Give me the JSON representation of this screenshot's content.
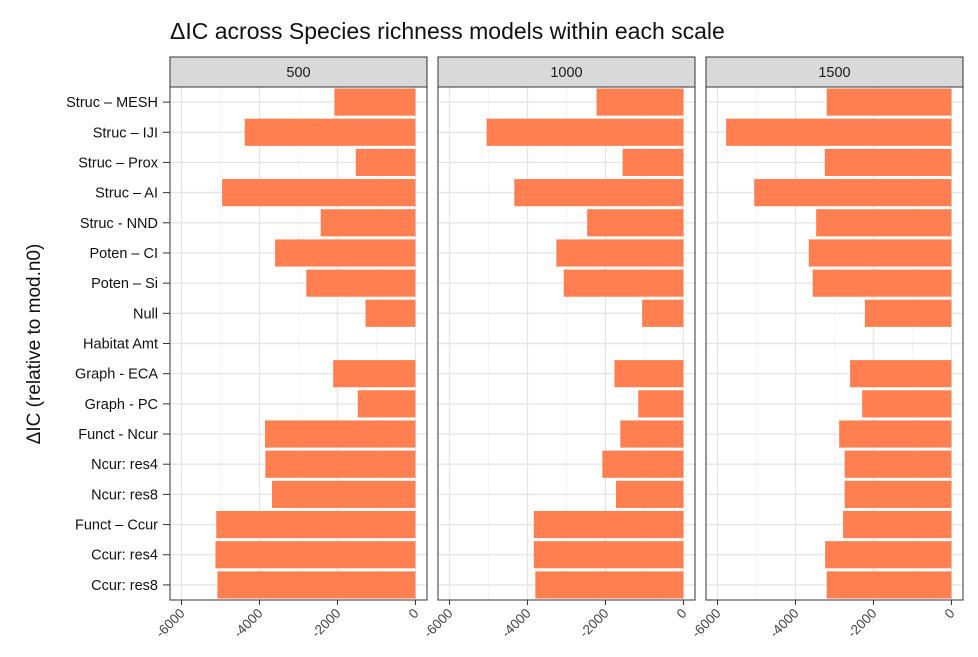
{
  "chart_data": {
    "type": "bar",
    "orientation": "horizontal",
    "title": "ΔIC across Species richness models within each scale",
    "ylabel": "ΔIC (relative to mod.n0)",
    "xlabel": "",
    "xlim": [
      -6000,
      0
    ],
    "x_ticks": [
      -6000,
      -4000,
      -2000,
      0
    ],
    "x_tick_labels": [
      "-6000",
      "-4000",
      "-2000",
      "0"
    ],
    "grid": true,
    "bar_color": "#ff7f50",
    "categories": [
      "Struc – MESH",
      "Struc – IJI",
      "Struc – Prox",
      "Struc – AI",
      "Struc - NND",
      "Poten – CI",
      "Poten – Si",
      "Null",
      "Habitat Amt",
      "Graph - ECA",
      "Graph - PC",
      "Funct - Ncur",
      "Ncur: res4",
      "Ncur: res8",
      "Funct – Ccur",
      "Ccur: res4",
      "Ccur: res8"
    ],
    "facets": [
      {
        "label": "500",
        "values": [
          -2080,
          -4380,
          -1530,
          -4960,
          -2430,
          -3600,
          -2800,
          -1280,
          0,
          -2110,
          -1480,
          -3860,
          -3850,
          -3680,
          -5110,
          -5130,
          -5080
        ]
      },
      {
        "label": "1000",
        "values": [
          -2230,
          -5050,
          -1560,
          -4340,
          -2470,
          -3260,
          -3070,
          -1060,
          0,
          -1770,
          -1160,
          -1620,
          -2080,
          -1730,
          -3840,
          -3840,
          -3800
        ]
      },
      {
        "label": "1500",
        "values": [
          -3200,
          -5780,
          -3250,
          -5060,
          -3470,
          -3660,
          -3560,
          -2220,
          0,
          -2600,
          -2290,
          -2880,
          -2740,
          -2740,
          -2780,
          -3240,
          -3200
        ]
      }
    ]
  }
}
